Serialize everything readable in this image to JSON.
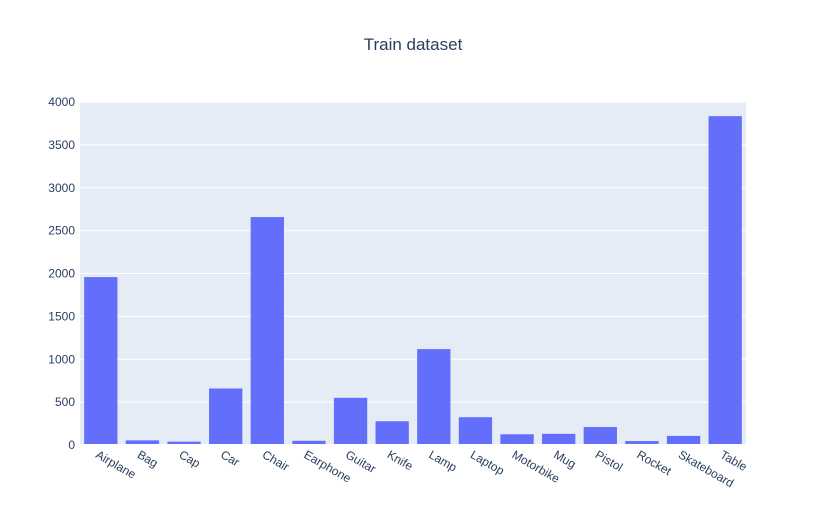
{
  "chart_data": {
    "type": "bar",
    "title": "Train dataset",
    "xlabel": "",
    "ylabel": "",
    "categories": [
      "Airplane",
      "Bag",
      "Cap",
      "Car",
      "Chair",
      "Earphone",
      "Guitar",
      "Knife",
      "Lamp",
      "Laptop",
      "Motorbike",
      "Mug",
      "Pistol",
      "Rocket",
      "Skateboard",
      "Table"
    ],
    "values": [
      1958,
      54,
      39,
      659,
      2658,
      49,
      550,
      277,
      1118,
      324,
      125,
      130,
      209,
      46,
      106,
      3835
    ],
    "ylim": [
      0,
      4000
    ],
    "yticks": [
      0,
      500,
      1000,
      1500,
      2000,
      2500,
      3000,
      3500,
      4000
    ],
    "grid": true,
    "legend": "none",
    "colors": {
      "bar": "#636efa",
      "plot_bg": "#e5ecf6",
      "grid": "#ffffff",
      "text": "#2a3f5f"
    }
  }
}
